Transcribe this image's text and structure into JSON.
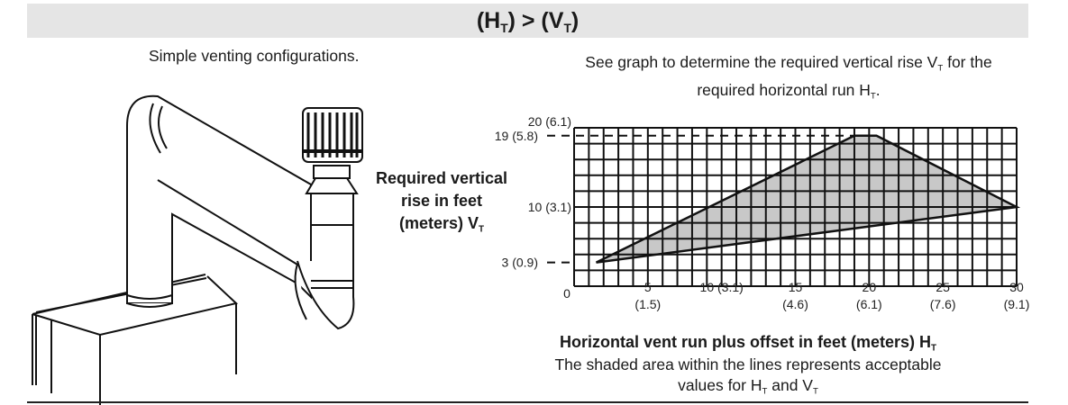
{
  "header": {
    "title_h": "(H",
    "title_sub1": "T",
    "title_mid": ") > (V",
    "title_sub2": "T",
    "title_end": ")"
  },
  "left_caption": "Simple venting configurations.",
  "right_caption": {
    "part1": "See graph to determine the required vertical rise V",
    "sub1": "T",
    "part2": " for the",
    "part3": "required horizontal run H",
    "sub2": "T",
    "part4": "."
  },
  "ylabel": {
    "line1": "Required vertical",
    "line2": "rise in feet",
    "line3": "(meters) V",
    "sub": "T"
  },
  "xlabel": {
    "text": "Horizontal vent run plus offset in feet (meters) H",
    "sub": "T"
  },
  "note": {
    "line1": "The shaded area within the lines represents acceptable",
    "line2a": "values for H",
    "sub1": "T",
    "line2b": " and V",
    "sub2": "T"
  },
  "illustration": {
    "icon": "vent-pipe-boiler-illustration"
  },
  "chart_data": {
    "type": "area",
    "xlim": [
      0,
      30
    ],
    "ylim": [
      0,
      20
    ],
    "grid": true,
    "x_grid_step": 1,
    "y_grid_step": 2,
    "x_ticks": [
      {
        "v": 0,
        "label": "0",
        "sub": ""
      },
      {
        "v": 5,
        "label": "5",
        "sub": "(1.5)"
      },
      {
        "v": 10,
        "label": "10 (3.1)",
        "sub": ""
      },
      {
        "v": 15,
        "label": "15",
        "sub": "(4.6)"
      },
      {
        "v": 20,
        "label": "20",
        "sub": "(6.1)"
      },
      {
        "v": 25,
        "label": "25",
        "sub": "(7.6)"
      },
      {
        "v": 30,
        "label": "30",
        "sub": "(9.1)"
      }
    ],
    "y_ticks": [
      {
        "v": 3,
        "label": "3 (0.9)",
        "dashed": true
      },
      {
        "v": 10,
        "label": "10 (3.1)",
        "dashed": false
      },
      {
        "v": 19,
        "label": "19 (5.8)",
        "dashed": true
      },
      {
        "v": 20,
        "label": "20 (6.1)",
        "dashed": false
      }
    ],
    "region": {
      "x": [
        1.5,
        19,
        20.5,
        30,
        1.5
      ],
      "y": [
        3,
        19,
        19,
        10,
        3
      ]
    },
    "fill_color": "#c8c8c8"
  }
}
